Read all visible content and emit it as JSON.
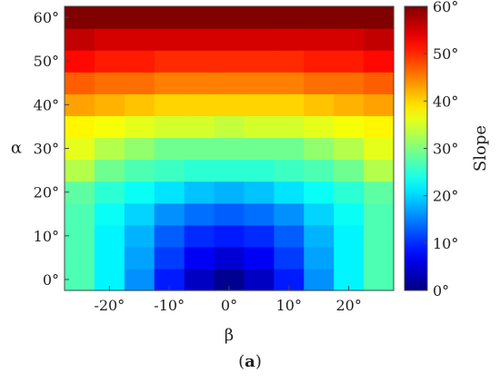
{
  "panel_label": {
    "open": "(",
    "letter": "a",
    "close": ")"
  },
  "chart_data": {
    "type": "heatmap",
    "xlabel": "β",
    "ylabel": "α",
    "colorbar_label": "Slope",
    "colormap": "jet",
    "color_range": [
      0,
      60
    ],
    "x_ticks": [
      "-20°",
      "-10°",
      "0°",
      "10°",
      "20°"
    ],
    "x_tick_values": [
      -20,
      -10,
      0,
      10,
      20
    ],
    "y_ticks": [
      "0°",
      "10°",
      "20°",
      "30°",
      "40°",
      "50°",
      "60°"
    ],
    "y_tick_values": [
      0,
      10,
      20,
      30,
      40,
      50,
      60
    ],
    "colorbar_ticks": [
      "0°",
      "10°",
      "20°",
      "30°",
      "40°",
      "50°",
      "60°"
    ],
    "colorbar_tick_values": [
      0,
      10,
      20,
      30,
      40,
      50,
      60
    ],
    "x": [
      -25,
      -20,
      -15,
      -10,
      -5,
      0,
      5,
      10,
      15,
      20,
      25
    ],
    "y": [
      0,
      5,
      10,
      15,
      20,
      25,
      30,
      35,
      40,
      45,
      50,
      55,
      60
    ],
    "xlim": [
      -27.5,
      27.5
    ],
    "ylim": [
      -2.5,
      62.5
    ],
    "z": [
      [
        27,
        22,
        16,
        9,
        4,
        1,
        4,
        9,
        16,
        22,
        27
      ],
      [
        27,
        22,
        17,
        11,
        7,
        5,
        7,
        11,
        17,
        22,
        27
      ],
      [
        27,
        22,
        18,
        13,
        10,
        9,
        10,
        13,
        18,
        22,
        27
      ],
      [
        27,
        23,
        20,
        16,
        14,
        13,
        14,
        16,
        20,
        23,
        27
      ],
      [
        28,
        25,
        23,
        21,
        19,
        18,
        19,
        21,
        23,
        25,
        28
      ],
      [
        33,
        29,
        27,
        26,
        25,
        25,
        25,
        26,
        27,
        29,
        33
      ],
      [
        36,
        33,
        31,
        29,
        29,
        29,
        29,
        29,
        31,
        33,
        36
      ],
      [
        38,
        37,
        36,
        35,
        35,
        34,
        35,
        35,
        36,
        37,
        38
      ],
      [
        43,
        42,
        41,
        40,
        40,
        40,
        40,
        40,
        41,
        42,
        43
      ],
      [
        47,
        46,
        46,
        45,
        45,
        45,
        45,
        45,
        46,
        46,
        47
      ],
      [
        52,
        51,
        51,
        50,
        50,
        50,
        50,
        50,
        51,
        51,
        52
      ],
      [
        56,
        55,
        55,
        55,
        55,
        55,
        55,
        55,
        55,
        55,
        56
      ],
      [
        60,
        60,
        60,
        60,
        60,
        60,
        60,
        60,
        60,
        60,
        60
      ]
    ]
  }
}
